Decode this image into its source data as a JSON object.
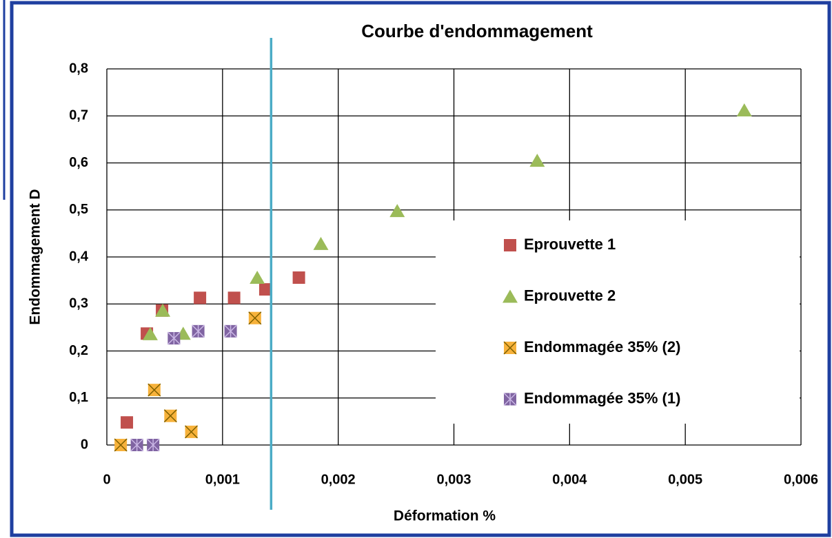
{
  "chart_data": {
    "type": "scatter",
    "title": "Courbe d'endommagement",
    "xlabel": "Déformation %",
    "ylabel": "Endommagement D",
    "xlim": [
      0,
      0.006
    ],
    "ylim": [
      0,
      0.8
    ],
    "xticks": [
      0,
      {
        "value": 0.001,
        "label": "0,001"
      },
      {
        "value": 0.002,
        "label": "0,002"
      },
      {
        "value": 0.003,
        "label": "0,003"
      },
      {
        "value": 0.004,
        "label": "0,004"
      },
      {
        "value": 0.005,
        "label": "0,005"
      },
      {
        "value": 0.006,
        "label": "0,006"
      }
    ],
    "yticks": [
      0,
      {
        "value": 0.1,
        "label": "0,1"
      },
      {
        "value": 0.2,
        "label": "0,2"
      },
      {
        "value": 0.3,
        "label": "0,3"
      },
      {
        "value": 0.4,
        "label": "0,4"
      },
      {
        "value": 0.5,
        "label": "0,5"
      },
      {
        "value": 0.6,
        "label": "0,6"
      },
      {
        "value": 0.7,
        "label": "0,7"
      },
      {
        "value": 0.8,
        "label": "0,8"
      }
    ],
    "grid": true,
    "vline": 0.00142,
    "vline_color": "#4bacc6",
    "series": [
      {
        "name": "Eprouvette 1",
        "color": "#c0504d",
        "marker": "square",
        "x": [
          0.000173,
          0.000346,
          0.000477,
          0.000805,
          0.0011,
          0.00137,
          0.00166
        ],
        "values": [
          0.048,
          0.237,
          0.286,
          0.313,
          0.313,
          0.331,
          0.356
        ]
      },
      {
        "name": "Eprouvette 2",
        "color": "#9bbb59",
        "marker": "triangle",
        "x": [
          0.000375,
          0.000483,
          0.00066,
          0.0013,
          0.00185,
          0.00251,
          0.00372,
          0.00551
        ],
        "values": [
          0.236,
          0.286,
          0.237,
          0.356,
          0.428,
          0.498,
          0.605,
          0.712
        ]
      },
      {
        "name": "Endommagée 35% (2)",
        "color": "#f7b23b",
        "marker": "xbox",
        "x": [
          0.00012,
          0.00041,
          0.00055,
          0.00073,
          0.00128
        ],
        "values": [
          0,
          0.117,
          0.062,
          0.028,
          0.27
        ]
      },
      {
        "name": "Endommagée 35% (1)",
        "color": "#8064a2",
        "marker": "star",
        "x": [
          0.00026,
          0.0004,
          0.00058,
          0.00079,
          0.00107
        ],
        "values": [
          0,
          0,
          0.227,
          0.242,
          0.242
        ]
      }
    ]
  }
}
